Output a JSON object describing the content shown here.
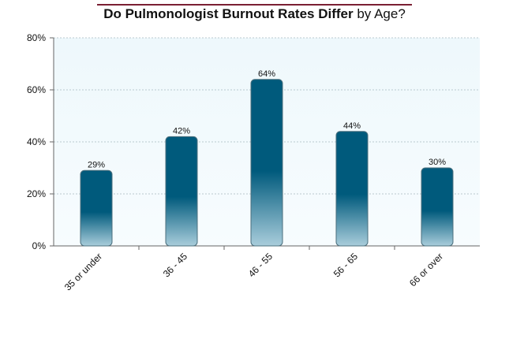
{
  "chart_data": {
    "type": "bar",
    "title_bold": "Do Pulmonologist Burnout Rates Differ",
    "title_rest": "by Age?",
    "categories": [
      "35 or under",
      "36 - 45",
      "46 - 55",
      "56 - 65",
      "66 or over"
    ],
    "values": [
      29,
      42,
      64,
      44,
      30
    ],
    "value_labels": [
      "29%",
      "42%",
      "64%",
      "44%",
      "30%"
    ],
    "yticks": [
      "0%",
      "20%",
      "40%",
      "60%",
      "80%"
    ],
    "ylim": [
      0,
      80
    ],
    "grid": true,
    "bar_color": "#005a7c",
    "bar_color_light": "#a9cddb",
    "plot_bg": "#eef8fc"
  }
}
